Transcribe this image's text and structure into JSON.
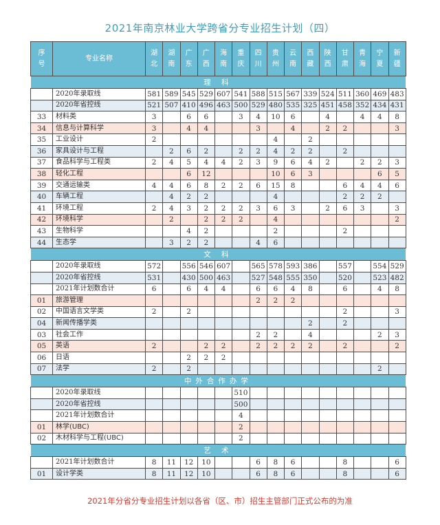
{
  "title": "2021年南京林业大学跨省分专业招生计划（四）",
  "header": {
    "seq": "序号",
    "name": "专业名称",
    "provinces": [
      "湖北",
      "湖南",
      "广东",
      "广西",
      "海南",
      "重庆",
      "四川",
      "贵州",
      "云南",
      "西藏",
      "陕西",
      "甘肃",
      "青海",
      "宁夏",
      "新疆"
    ]
  },
  "sections": [
    {
      "label": "理 科",
      "rows": [
        {
          "seq": "",
          "name": "2020年录取线",
          "values": [
            "581",
            "589",
            "545",
            "529",
            "607",
            "541",
            "588",
            "515",
            "567",
            "339",
            "524",
            "511",
            "360",
            "469",
            "483"
          ]
        },
        {
          "seq": "",
          "name": "2020年省控线",
          "values": [
            "521",
            "507",
            "410",
            "496",
            "463",
            "500",
            "529",
            "480",
            "535",
            "325",
            "451",
            "458",
            "352",
            "434",
            "431"
          ]
        },
        {
          "seq": "33",
          "name": "材料类",
          "values": [
            "3",
            "",
            "6",
            "6",
            "",
            "3",
            "4",
            "10",
            "6",
            "",
            "4",
            "",
            "4",
            "4",
            "8"
          ]
        },
        {
          "seq": "34",
          "name": "信息与计算科学",
          "values": [
            "3",
            "",
            "4",
            "4",
            "",
            "",
            "3",
            "",
            "4",
            "",
            "2",
            "2",
            "",
            "",
            "3"
          ]
        },
        {
          "seq": "35",
          "name": "工业设计",
          "values": [
            "2",
            "",
            "",
            "",
            "",
            "",
            "",
            "4",
            "",
            "2",
            "",
            "",
            "",
            "",
            ""
          ]
        },
        {
          "seq": "36",
          "name": "家具设计与工程",
          "values": [
            "",
            "2",
            "6",
            "2",
            "",
            "2",
            "2",
            "4",
            "2",
            "2",
            "",
            "2",
            "",
            "",
            ""
          ]
        },
        {
          "seq": "37",
          "name": "食品科学与工程类",
          "values": [
            "2",
            "4",
            "5",
            "4",
            "4",
            "2",
            "3",
            "9",
            "6",
            "4",
            "2",
            "",
            "2",
            "2",
            "3"
          ]
        },
        {
          "seq": "38",
          "name": "轻化工程",
          "values": [
            "",
            "",
            "6",
            "12",
            "",
            "",
            "",
            "10",
            "6",
            "3",
            "",
            "",
            "",
            "6",
            "5"
          ]
        },
        {
          "seq": "39",
          "name": "交通运输类",
          "values": [
            "4",
            "4",
            "6",
            "8",
            "2",
            "2",
            "6",
            "15",
            "8",
            "",
            "",
            "6",
            "4",
            "4",
            "6"
          ]
        },
        {
          "seq": "40",
          "name": "车辆工程",
          "values": [
            "",
            "4",
            "2",
            "2",
            "",
            "",
            "",
            "4",
            "",
            "",
            "",
            "2",
            "2",
            "2",
            ""
          ]
        },
        {
          "seq": "41",
          "name": "环境工程",
          "values": [
            "2",
            "4",
            "3",
            "2",
            "2",
            "2",
            "3",
            "6",
            "3",
            "",
            "2",
            "6",
            "3",
            "",
            "3"
          ]
        },
        {
          "seq": "42",
          "name": "环境科学",
          "values": [
            "",
            "2",
            "",
            "2",
            "2",
            "2",
            "",
            "4",
            "",
            "",
            "",
            "",
            "",
            "",
            "2"
          ]
        },
        {
          "seq": "43",
          "name": "生物科学",
          "values": [
            "",
            "",
            "4",
            "2",
            "",
            "",
            "",
            "2",
            "",
            "",
            "",
            "2",
            "",
            "",
            ""
          ]
        },
        {
          "seq": "44",
          "name": "生态学",
          "values": [
            "",
            "3",
            "2",
            "2",
            "",
            "",
            "4",
            "6",
            "",
            "",
            "",
            "",
            "",
            "",
            ""
          ]
        }
      ]
    },
    {
      "label": "文 科",
      "rows": [
        {
          "seq": "",
          "name": "2020年录取线",
          "values": [
            "572",
            "",
            "556",
            "546",
            "607",
            "",
            "565",
            "578",
            "593",
            "386",
            "",
            "557",
            "",
            "554",
            "529"
          ]
        },
        {
          "seq": "",
          "name": "2020年省控线",
          "values": [
            "531",
            "",
            "430",
            "500",
            "463",
            "",
            "527",
            "548",
            "555",
            "350",
            "",
            "520",
            "",
            "523",
            "482"
          ]
        },
        {
          "seq": "",
          "name": "2021年计划数合计",
          "values": [
            "6",
            "",
            "6",
            "4",
            "4",
            "",
            "6",
            "6",
            "4",
            "8",
            "",
            "6",
            "",
            "4",
            "8"
          ]
        },
        {
          "seq": "01",
          "name": "旅游管理",
          "values": [
            "",
            "",
            "",
            "",
            "",
            "",
            "2",
            "2",
            "2",
            "",
            "",
            "",
            "",
            "",
            ""
          ]
        },
        {
          "seq": "02",
          "name": "中国语言文学类",
          "values": [
            "2",
            "",
            "2",
            "",
            "",
            "",
            "",
            "",
            "",
            "",
            "",
            "2",
            "",
            "",
            "3"
          ]
        },
        {
          "seq": "04",
          "name": "新闻传播学类",
          "values": [
            "",
            "",
            "",
            "",
            "",
            "",
            "",
            "",
            "",
            "2",
            "",
            "2",
            "",
            "",
            ""
          ]
        },
        {
          "seq": "03",
          "name": "社会工作",
          "values": [
            "",
            "",
            "",
            "",
            "",
            "",
            "2",
            "2",
            "",
            "4",
            "",
            "",
            "",
            "2",
            "3"
          ]
        },
        {
          "seq": "05",
          "name": "英语",
          "values": [
            "2",
            "",
            "",
            "2",
            "2",
            "",
            "2",
            "2",
            "2",
            "2",
            "",
            "2",
            "",
            "",
            "2"
          ]
        },
        {
          "seq": "06",
          "name": "日语",
          "values": [
            "",
            "",
            "2",
            "2",
            "2",
            "",
            "",
            "",
            "",
            "",
            "",
            "",
            "",
            "",
            ""
          ]
        },
        {
          "seq": "07",
          "name": "法学",
          "values": [
            "2",
            "",
            "2",
            "",
            "",
            "",
            "",
            "",
            "",
            "",
            "",
            "",
            "",
            "2",
            ""
          ]
        }
      ]
    },
    {
      "label": "中外合作办学",
      "rows": [
        {
          "seq": "",
          "name": "2020年录取线",
          "values": [
            "",
            "",
            "",
            "",
            "",
            "510",
            "",
            "",
            "",
            "",
            "",
            "",
            "",
            "",
            ""
          ]
        },
        {
          "seq": "",
          "name": "2020年省控线",
          "values": [
            "",
            "",
            "",
            "",
            "",
            "500",
            "",
            "",
            "",
            "",
            "",
            "",
            "",
            "",
            ""
          ]
        },
        {
          "seq": "",
          "name": "2021年计划数合计",
          "values": [
            "",
            "",
            "",
            "",
            "",
            "4",
            "",
            "",
            "",
            "",
            "",
            "",
            "",
            "",
            ""
          ]
        },
        {
          "seq": "01",
          "name": "林学(UBC)",
          "values": [
            "",
            "",
            "",
            "",
            "",
            "2",
            "",
            "",
            "",
            "",
            "",
            "",
            "",
            "",
            ""
          ]
        },
        {
          "seq": "02",
          "name": "木材科学与工程(UBC)",
          "values": [
            "",
            "",
            "",
            "",
            "",
            "2",
            "",
            "",
            "",
            "",
            "",
            "",
            "",
            "",
            ""
          ]
        }
      ]
    },
    {
      "label": "艺 术",
      "rows": [
        {
          "seq": "",
          "name": "2021年计划数合计",
          "values": [
            "8",
            "11",
            "12",
            "10",
            "",
            "",
            "6",
            "8",
            "6",
            "",
            "",
            "8",
            "",
            "",
            "6"
          ]
        },
        {
          "seq": "01",
          "name": "设计学类",
          "values": [
            "8",
            "11",
            "12",
            "10",
            "",
            "",
            "6",
            "8",
            "6",
            "",
            "",
            "8",
            "",
            "",
            "6"
          ]
        }
      ]
    }
  ],
  "footer": "2021年分省分专业招生计划以各省（区、市）招生主管部门正式公布的为准",
  "colors": {
    "header": "#6bbcd5",
    "title": "#3f9cb8",
    "row_blue": "#e4ecf4",
    "row_pink": "#fbe4dc",
    "footer": "#d63a2f"
  }
}
